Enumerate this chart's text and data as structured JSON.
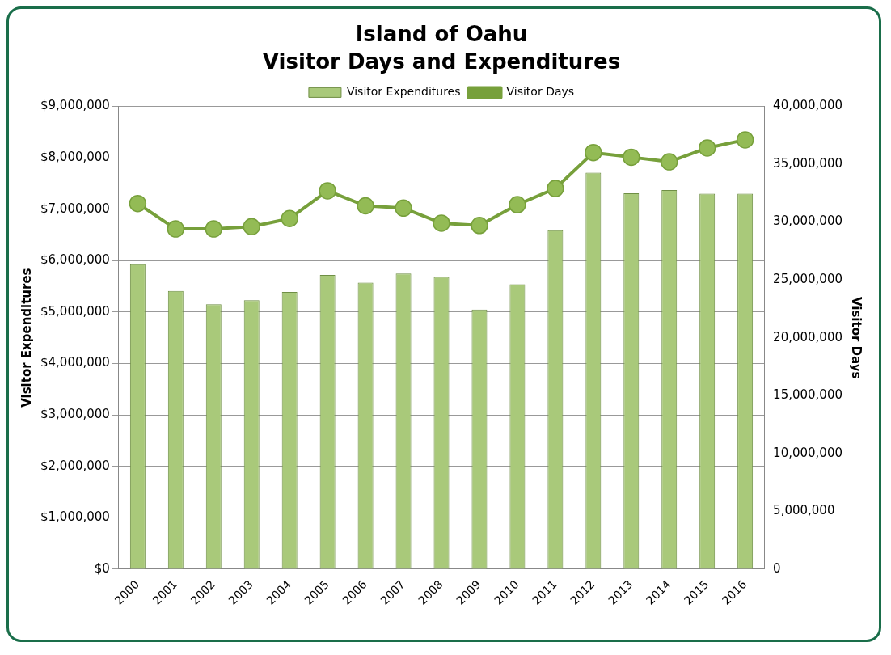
{
  "chart_data": {
    "type": "bar",
    "title": "Island of Oahu",
    "subtitle": "Visitor Days and Expenditures",
    "ylabel": "Visitor Expenditures",
    "y2label": "Visitor Days",
    "categories": [
      "2000",
      "2001",
      "2002",
      "2003",
      "2004",
      "2005",
      "2006",
      "2007",
      "2008",
      "2009",
      "2010",
      "2011",
      "2012",
      "2013",
      "2014",
      "2015",
      "2016"
    ],
    "series": [
      {
        "name": "Visitor Expenditures",
        "color": "#a9c97a",
        "values": [
          5930000,
          5410000,
          5150000,
          5230000,
          5390000,
          5720000,
          5570000,
          5750000,
          5680000,
          5050000,
          5540000,
          6590000,
          7710000,
          7310000,
          7370000,
          7300000,
          7300000
        ]
      },
      {
        "name": "Visitor Days",
        "type": "line",
        "axis": "y2",
        "color": "#77a03b",
        "marker": "circle",
        "values": [
          31600000,
          29400000,
          29400000,
          29600000,
          30300000,
          32700000,
          31400000,
          31200000,
          29900000,
          29700000,
          31500000,
          32900000,
          36000000,
          35600000,
          35200000,
          36400000,
          37100000
        ]
      }
    ],
    "ylim": [
      0,
      9000000
    ],
    "yticks": [
      {
        "value": 0,
        "label": "$0"
      },
      {
        "value": 1000000,
        "label": "$1,000,000"
      },
      {
        "value": 2000000,
        "label": "$2,000,000"
      },
      {
        "value": 3000000,
        "label": "$3,000,000"
      },
      {
        "value": 4000000,
        "label": "$4,000,000"
      },
      {
        "value": 5000000,
        "label": "$5,000,000"
      },
      {
        "value": 6000000,
        "label": "$6,000,000"
      },
      {
        "value": 7000000,
        "label": "$7,000,000"
      },
      {
        "value": 8000000,
        "label": "$8,000,000"
      },
      {
        "value": 9000000,
        "label": "$9,000,000"
      }
    ],
    "y2lim": [
      0,
      40000000
    ],
    "y2ticks": [
      0,
      {
        "value": 5000000,
        "label": "5,000,000"
      },
      {
        "value": 10000000,
        "label": "10,000,000"
      },
      {
        "value": 15000000,
        "label": "15,000,000"
      },
      {
        "value": 20000000,
        "label": "20,000,000"
      },
      {
        "value": 25000000,
        "label": "25,000,000"
      },
      {
        "value": 30000000,
        "label": "30,000,000"
      },
      {
        "value": 35000000,
        "label": "35,000,000"
      },
      {
        "value": 40000000,
        "label": "40,000,000"
      }
    ],
    "grid": "y",
    "legend": "top"
  }
}
